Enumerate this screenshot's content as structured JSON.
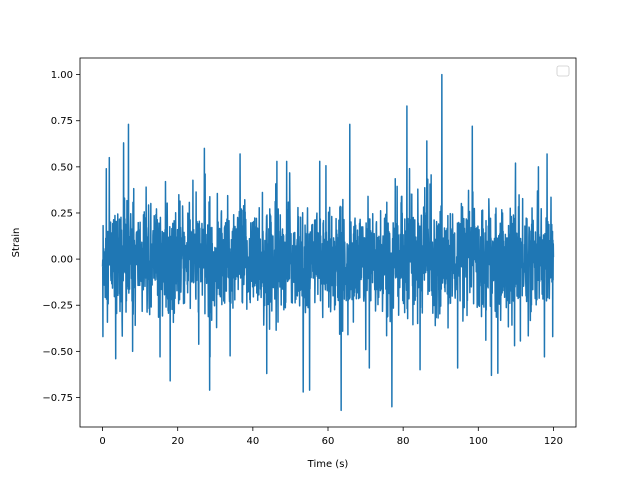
{
  "chart_data": {
    "type": "line",
    "title": "",
    "xlabel": "Time (s)",
    "ylabel": "Strain",
    "xlim": [
      -6,
      126
    ],
    "ylim": [
      -0.91,
      1.09
    ],
    "x_ticks": [
      0,
      20,
      40,
      60,
      80,
      100,
      120
    ],
    "x_tick_labels": [
      "0",
      "20",
      "40",
      "60",
      "80",
      "100",
      "120"
    ],
    "y_ticks": [
      -0.75,
      -0.5,
      -0.25,
      0.0,
      0.25,
      0.5,
      0.75,
      1.0
    ],
    "y_tick_labels": [
      "−0.75",
      "−0.50",
      "−0.25",
      "0.00",
      "0.25",
      "0.50",
      "0.75",
      "1.00"
    ],
    "grid": false,
    "legend": {
      "placement": "upper right",
      "entries": []
    },
    "series": [
      {
        "color": "#1f77b4",
        "x_start": 0,
        "x_end": 120,
        "sample_step": 0.05,
        "typical_band": [
          -0.3,
          0.3
        ],
        "peaks": [
          {
            "x": 0.1,
            "y": -0.42
          },
          {
            "x": 1.0,
            "y": 0.49
          },
          {
            "x": 1.8,
            "y": 0.55
          },
          {
            "x": 3.5,
            "y": -0.54
          },
          {
            "x": 5.6,
            "y": 0.63
          },
          {
            "x": 6.9,
            "y": 0.73
          },
          {
            "x": 8.0,
            "y": -0.5
          },
          {
            "x": 15.3,
            "y": -0.53
          },
          {
            "x": 18.0,
            "y": -0.66
          },
          {
            "x": 27.1,
            "y": 0.6
          },
          {
            "x": 28.5,
            "y": -0.71
          },
          {
            "x": 36.6,
            "y": 0.57
          },
          {
            "x": 43.7,
            "y": -0.62
          },
          {
            "x": 46.4,
            "y": 0.53
          },
          {
            "x": 49.0,
            "y": 0.53
          },
          {
            "x": 53.4,
            "y": -0.72
          },
          {
            "x": 55.1,
            "y": -0.71
          },
          {
            "x": 63.5,
            "y": -0.82
          },
          {
            "x": 65.8,
            "y": 0.73
          },
          {
            "x": 71.0,
            "y": -0.59
          },
          {
            "x": 77.0,
            "y": -0.8
          },
          {
            "x": 81.0,
            "y": 0.83
          },
          {
            "x": 84.5,
            "y": -0.6
          },
          {
            "x": 86.3,
            "y": 0.64
          },
          {
            "x": 90.3,
            "y": 1.0
          },
          {
            "x": 94.5,
            "y": -0.59
          },
          {
            "x": 98.4,
            "y": 0.72
          },
          {
            "x": 103.5,
            "y": -0.63
          },
          {
            "x": 109.9,
            "y": 0.52
          },
          {
            "x": 116.0,
            "y": 0.5
          },
          {
            "x": 117.6,
            "y": -0.53
          },
          {
            "x": 118.3,
            "y": 0.57
          },
          {
            "x": 119.8,
            "y": -0.42
          }
        ]
      }
    ]
  }
}
